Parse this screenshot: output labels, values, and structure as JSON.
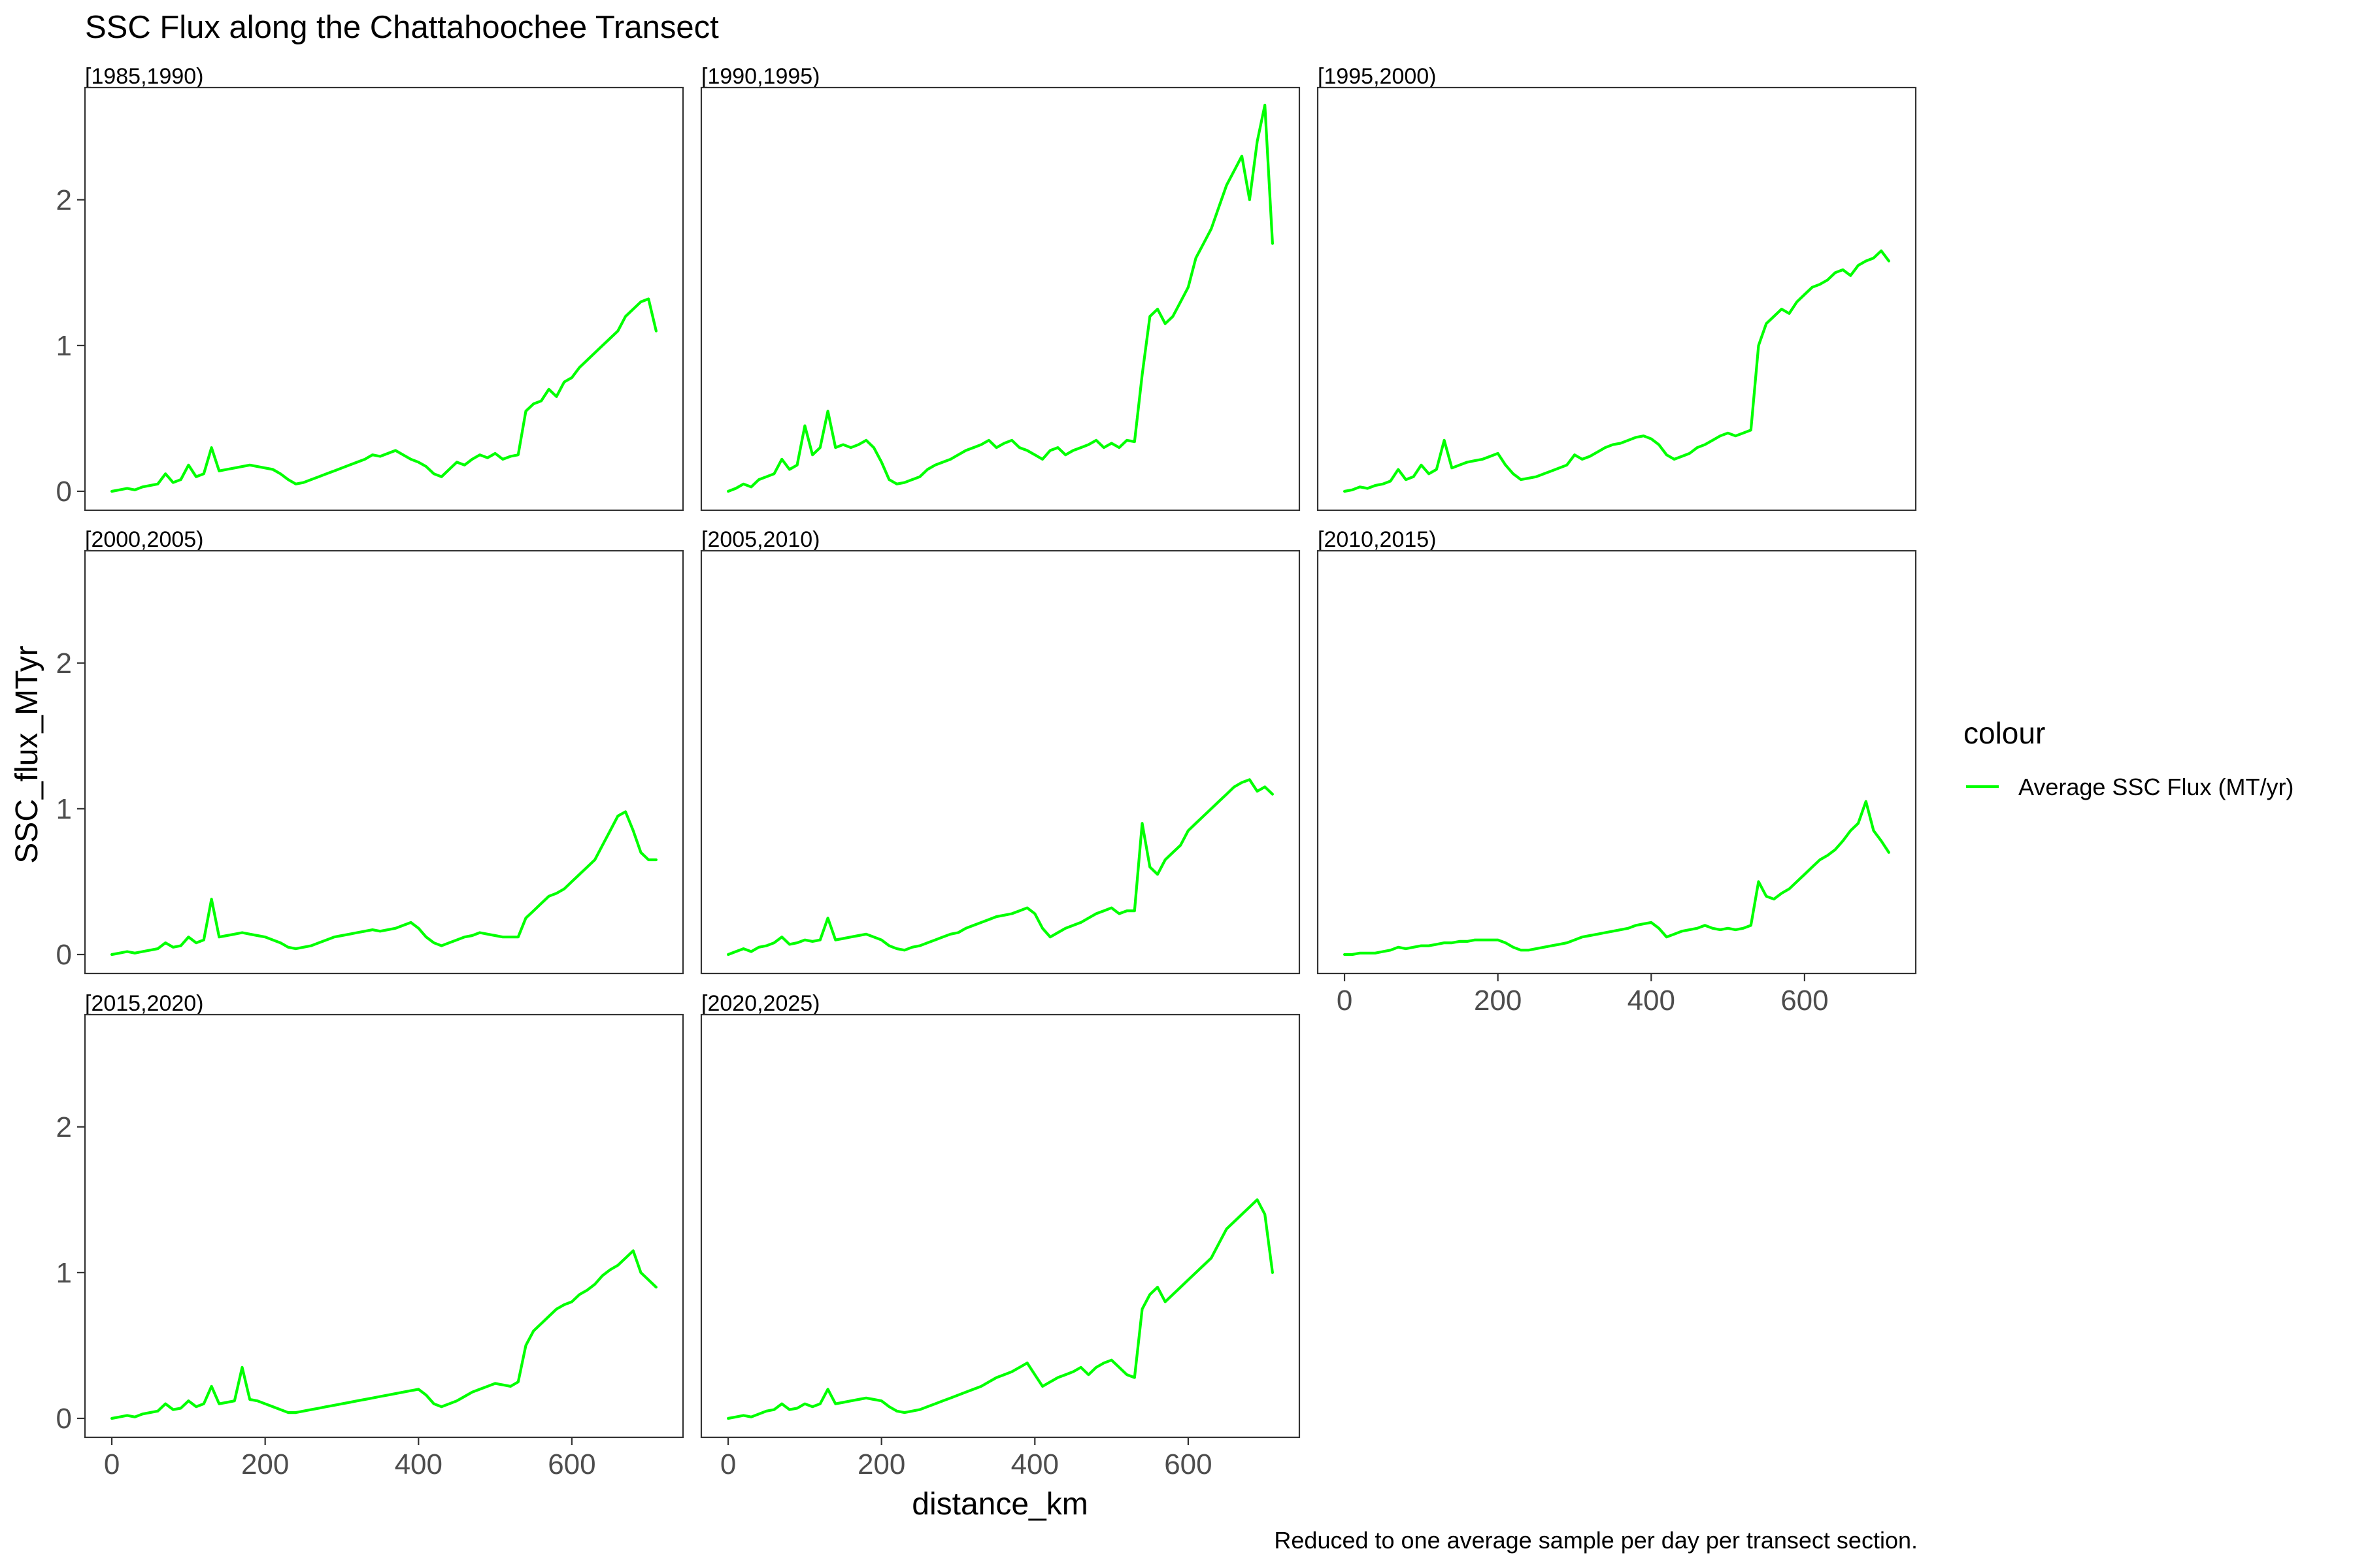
{
  "title": "SSC Flux along the Chattahoochee Transect",
  "caption": "Reduced to one average sample per day per transect section.",
  "legend": {
    "title": "colour",
    "label": "Average SSC Flux (MT/yr)",
    "color": "#00FF00"
  },
  "chart_data": {
    "type": "line",
    "title": "SSC Flux along the Chattahoochee Transect",
    "xlabel": "distance_km",
    "ylabel": "SSC_flux_MTyr",
    "xlim": [
      -35,
      745
    ],
    "ylim": [
      -0.13,
      2.77
    ],
    "x_ticks": [
      0,
      200,
      400,
      600
    ],
    "x_tick_labels": [
      "0",
      "200",
      "400",
      "600"
    ],
    "y_ticks": [
      0,
      1,
      2
    ],
    "y_tick_labels": [
      "0",
      "1",
      "2"
    ],
    "grid": false,
    "legend_position": "right",
    "series_color": "#00FF00",
    "series_name": "Average SSC Flux (MT/yr)",
    "x": [
      0,
      10,
      20,
      30,
      40,
      50,
      60,
      70,
      80,
      90,
      100,
      110,
      120,
      130,
      140,
      150,
      160,
      170,
      180,
      190,
      200,
      210,
      220,
      230,
      240,
      250,
      260,
      270,
      280,
      290,
      300,
      310,
      320,
      330,
      340,
      350,
      360,
      370,
      380,
      390,
      400,
      410,
      420,
      430,
      440,
      450,
      460,
      470,
      480,
      490,
      500,
      510,
      520,
      530,
      540,
      550,
      560,
      570,
      580,
      590,
      600,
      610,
      620,
      630,
      640,
      650,
      660,
      670,
      680,
      690,
      700,
      710
    ],
    "panels": [
      {
        "label": "[1985,1990)",
        "y": [
          0,
          0.01,
          0.02,
          0.01,
          0.03,
          0.04,
          0.05,
          0.12,
          0.06,
          0.08,
          0.18,
          0.1,
          0.12,
          0.3,
          0.14,
          0.15,
          0.16,
          0.17,
          0.18,
          0.17,
          0.16,
          0.15,
          0.12,
          0.08,
          0.05,
          0.06,
          0.08,
          0.1,
          0.12,
          0.14,
          0.16,
          0.18,
          0.2,
          0.22,
          0.25,
          0.24,
          0.26,
          0.28,
          0.25,
          0.22,
          0.2,
          0.17,
          0.12,
          0.1,
          0.15,
          0.2,
          0.18,
          0.22,
          0.25,
          0.23,
          0.26,
          0.22,
          0.24,
          0.25,
          0.55,
          0.6,
          0.62,
          0.7,
          0.65,
          0.75,
          0.78,
          0.85,
          0.9,
          0.95,
          1.0,
          1.05,
          1.1,
          1.2,
          1.25,
          1.3,
          1.32,
          1.1
        ]
      },
      {
        "label": "[1990,1995)",
        "y": [
          0,
          0.02,
          0.05,
          0.03,
          0.08,
          0.1,
          0.12,
          0.22,
          0.15,
          0.18,
          0.45,
          0.25,
          0.3,
          0.55,
          0.3,
          0.32,
          0.3,
          0.32,
          0.35,
          0.3,
          0.2,
          0.08,
          0.05,
          0.06,
          0.08,
          0.1,
          0.15,
          0.18,
          0.2,
          0.22,
          0.25,
          0.28,
          0.3,
          0.32,
          0.35,
          0.3,
          0.33,
          0.35,
          0.3,
          0.28,
          0.25,
          0.22,
          0.28,
          0.3,
          0.25,
          0.28,
          0.3,
          0.32,
          0.35,
          0.3,
          0.33,
          0.3,
          0.35,
          0.34,
          0.8,
          1.2,
          1.25,
          1.15,
          1.2,
          1.3,
          1.4,
          1.6,
          1.7,
          1.8,
          1.95,
          2.1,
          2.2,
          2.3,
          2.0,
          2.4,
          2.65,
          1.7
        ]
      },
      {
        "label": "[1995,2000)",
        "y": [
          0,
          0.01,
          0.03,
          0.02,
          0.04,
          0.05,
          0.07,
          0.15,
          0.08,
          0.1,
          0.18,
          0.12,
          0.15,
          0.35,
          0.16,
          0.18,
          0.2,
          0.21,
          0.22,
          0.24,
          0.26,
          0.18,
          0.12,
          0.08,
          0.09,
          0.1,
          0.12,
          0.14,
          0.16,
          0.18,
          0.25,
          0.22,
          0.24,
          0.27,
          0.3,
          0.32,
          0.33,
          0.35,
          0.37,
          0.38,
          0.36,
          0.32,
          0.25,
          0.22,
          0.24,
          0.26,
          0.3,
          0.32,
          0.35,
          0.38,
          0.4,
          0.38,
          0.4,
          0.42,
          1.0,
          1.15,
          1.2,
          1.25,
          1.22,
          1.3,
          1.35,
          1.4,
          1.42,
          1.45,
          1.5,
          1.52,
          1.48,
          1.55,
          1.58,
          1.6,
          1.65,
          1.58
        ]
      },
      {
        "label": "[2000,2005)",
        "y": [
          0,
          0.01,
          0.02,
          0.01,
          0.02,
          0.03,
          0.04,
          0.08,
          0.05,
          0.06,
          0.12,
          0.08,
          0.1,
          0.38,
          0.12,
          0.13,
          0.14,
          0.15,
          0.14,
          0.13,
          0.12,
          0.1,
          0.08,
          0.05,
          0.04,
          0.05,
          0.06,
          0.08,
          0.1,
          0.12,
          0.13,
          0.14,
          0.15,
          0.16,
          0.17,
          0.16,
          0.17,
          0.18,
          0.2,
          0.22,
          0.18,
          0.12,
          0.08,
          0.06,
          0.08,
          0.1,
          0.12,
          0.13,
          0.15,
          0.14,
          0.13,
          0.12,
          0.12,
          0.12,
          0.25,
          0.3,
          0.35,
          0.4,
          0.42,
          0.45,
          0.5,
          0.55,
          0.6,
          0.65,
          0.75,
          0.85,
          0.95,
          0.98,
          0.85,
          0.7,
          0.65,
          0.65
        ]
      },
      {
        "label": "[2005,2010)",
        "y": [
          0,
          0.02,
          0.04,
          0.02,
          0.05,
          0.06,
          0.08,
          0.12,
          0.07,
          0.08,
          0.1,
          0.09,
          0.1,
          0.25,
          0.1,
          0.11,
          0.12,
          0.13,
          0.14,
          0.12,
          0.1,
          0.06,
          0.04,
          0.03,
          0.05,
          0.06,
          0.08,
          0.1,
          0.12,
          0.14,
          0.15,
          0.18,
          0.2,
          0.22,
          0.24,
          0.26,
          0.27,
          0.28,
          0.3,
          0.32,
          0.28,
          0.18,
          0.12,
          0.15,
          0.18,
          0.2,
          0.22,
          0.25,
          0.28,
          0.3,
          0.32,
          0.28,
          0.3,
          0.3,
          0.9,
          0.6,
          0.55,
          0.65,
          0.7,
          0.75,
          0.85,
          0.9,
          0.95,
          1.0,
          1.05,
          1.1,
          1.15,
          1.18,
          1.2,
          1.12,
          1.15,
          1.1
        ]
      },
      {
        "label": "[2010,2015)",
        "y": [
          0,
          0.0,
          0.01,
          0.01,
          0.01,
          0.02,
          0.03,
          0.05,
          0.04,
          0.05,
          0.06,
          0.06,
          0.07,
          0.08,
          0.08,
          0.09,
          0.09,
          0.1,
          0.1,
          0.1,
          0.1,
          0.08,
          0.05,
          0.03,
          0.03,
          0.04,
          0.05,
          0.06,
          0.07,
          0.08,
          0.1,
          0.12,
          0.13,
          0.14,
          0.15,
          0.16,
          0.17,
          0.18,
          0.2,
          0.21,
          0.22,
          0.18,
          0.12,
          0.14,
          0.16,
          0.17,
          0.18,
          0.2,
          0.18,
          0.17,
          0.18,
          0.17,
          0.18,
          0.2,
          0.5,
          0.4,
          0.38,
          0.42,
          0.45,
          0.5,
          0.55,
          0.6,
          0.65,
          0.68,
          0.72,
          0.78,
          0.85,
          0.9,
          1.05,
          0.85,
          0.78,
          0.7
        ]
      },
      {
        "label": "[2015,2020)",
        "y": [
          0,
          0.01,
          0.02,
          0.01,
          0.03,
          0.04,
          0.05,
          0.1,
          0.06,
          0.07,
          0.12,
          0.08,
          0.1,
          0.22,
          0.1,
          0.11,
          0.12,
          0.35,
          0.13,
          0.12,
          0.1,
          0.08,
          0.06,
          0.04,
          0.04,
          0.05,
          0.06,
          0.07,
          0.08,
          0.09,
          0.1,
          0.11,
          0.12,
          0.13,
          0.14,
          0.15,
          0.16,
          0.17,
          0.18,
          0.19,
          0.2,
          0.16,
          0.1,
          0.08,
          0.1,
          0.12,
          0.15,
          0.18,
          0.2,
          0.22,
          0.24,
          0.23,
          0.22,
          0.25,
          0.5,
          0.6,
          0.65,
          0.7,
          0.75,
          0.78,
          0.8,
          0.85,
          0.88,
          0.92,
          0.98,
          1.02,
          1.05,
          1.1,
          1.15,
          1.0,
          0.95,
          0.9
        ]
      },
      {
        "label": "[2020,2025)",
        "y": [
          0,
          0.01,
          0.02,
          0.01,
          0.03,
          0.05,
          0.06,
          0.1,
          0.06,
          0.07,
          0.1,
          0.08,
          0.1,
          0.2,
          0.1,
          0.11,
          0.12,
          0.13,
          0.14,
          0.13,
          0.12,
          0.08,
          0.05,
          0.04,
          0.05,
          0.06,
          0.08,
          0.1,
          0.12,
          0.14,
          0.16,
          0.18,
          0.2,
          0.22,
          0.25,
          0.28,
          0.3,
          0.32,
          0.35,
          0.38,
          0.3,
          0.22,
          0.25,
          0.28,
          0.3,
          0.32,
          0.35,
          0.3,
          0.35,
          0.38,
          0.4,
          0.35,
          0.3,
          0.28,
          0.75,
          0.85,
          0.9,
          0.8,
          0.85,
          0.9,
          0.95,
          1.0,
          1.05,
          1.1,
          1.2,
          1.3,
          1.35,
          1.4,
          1.45,
          1.5,
          1.4,
          1.0
        ]
      }
    ]
  }
}
